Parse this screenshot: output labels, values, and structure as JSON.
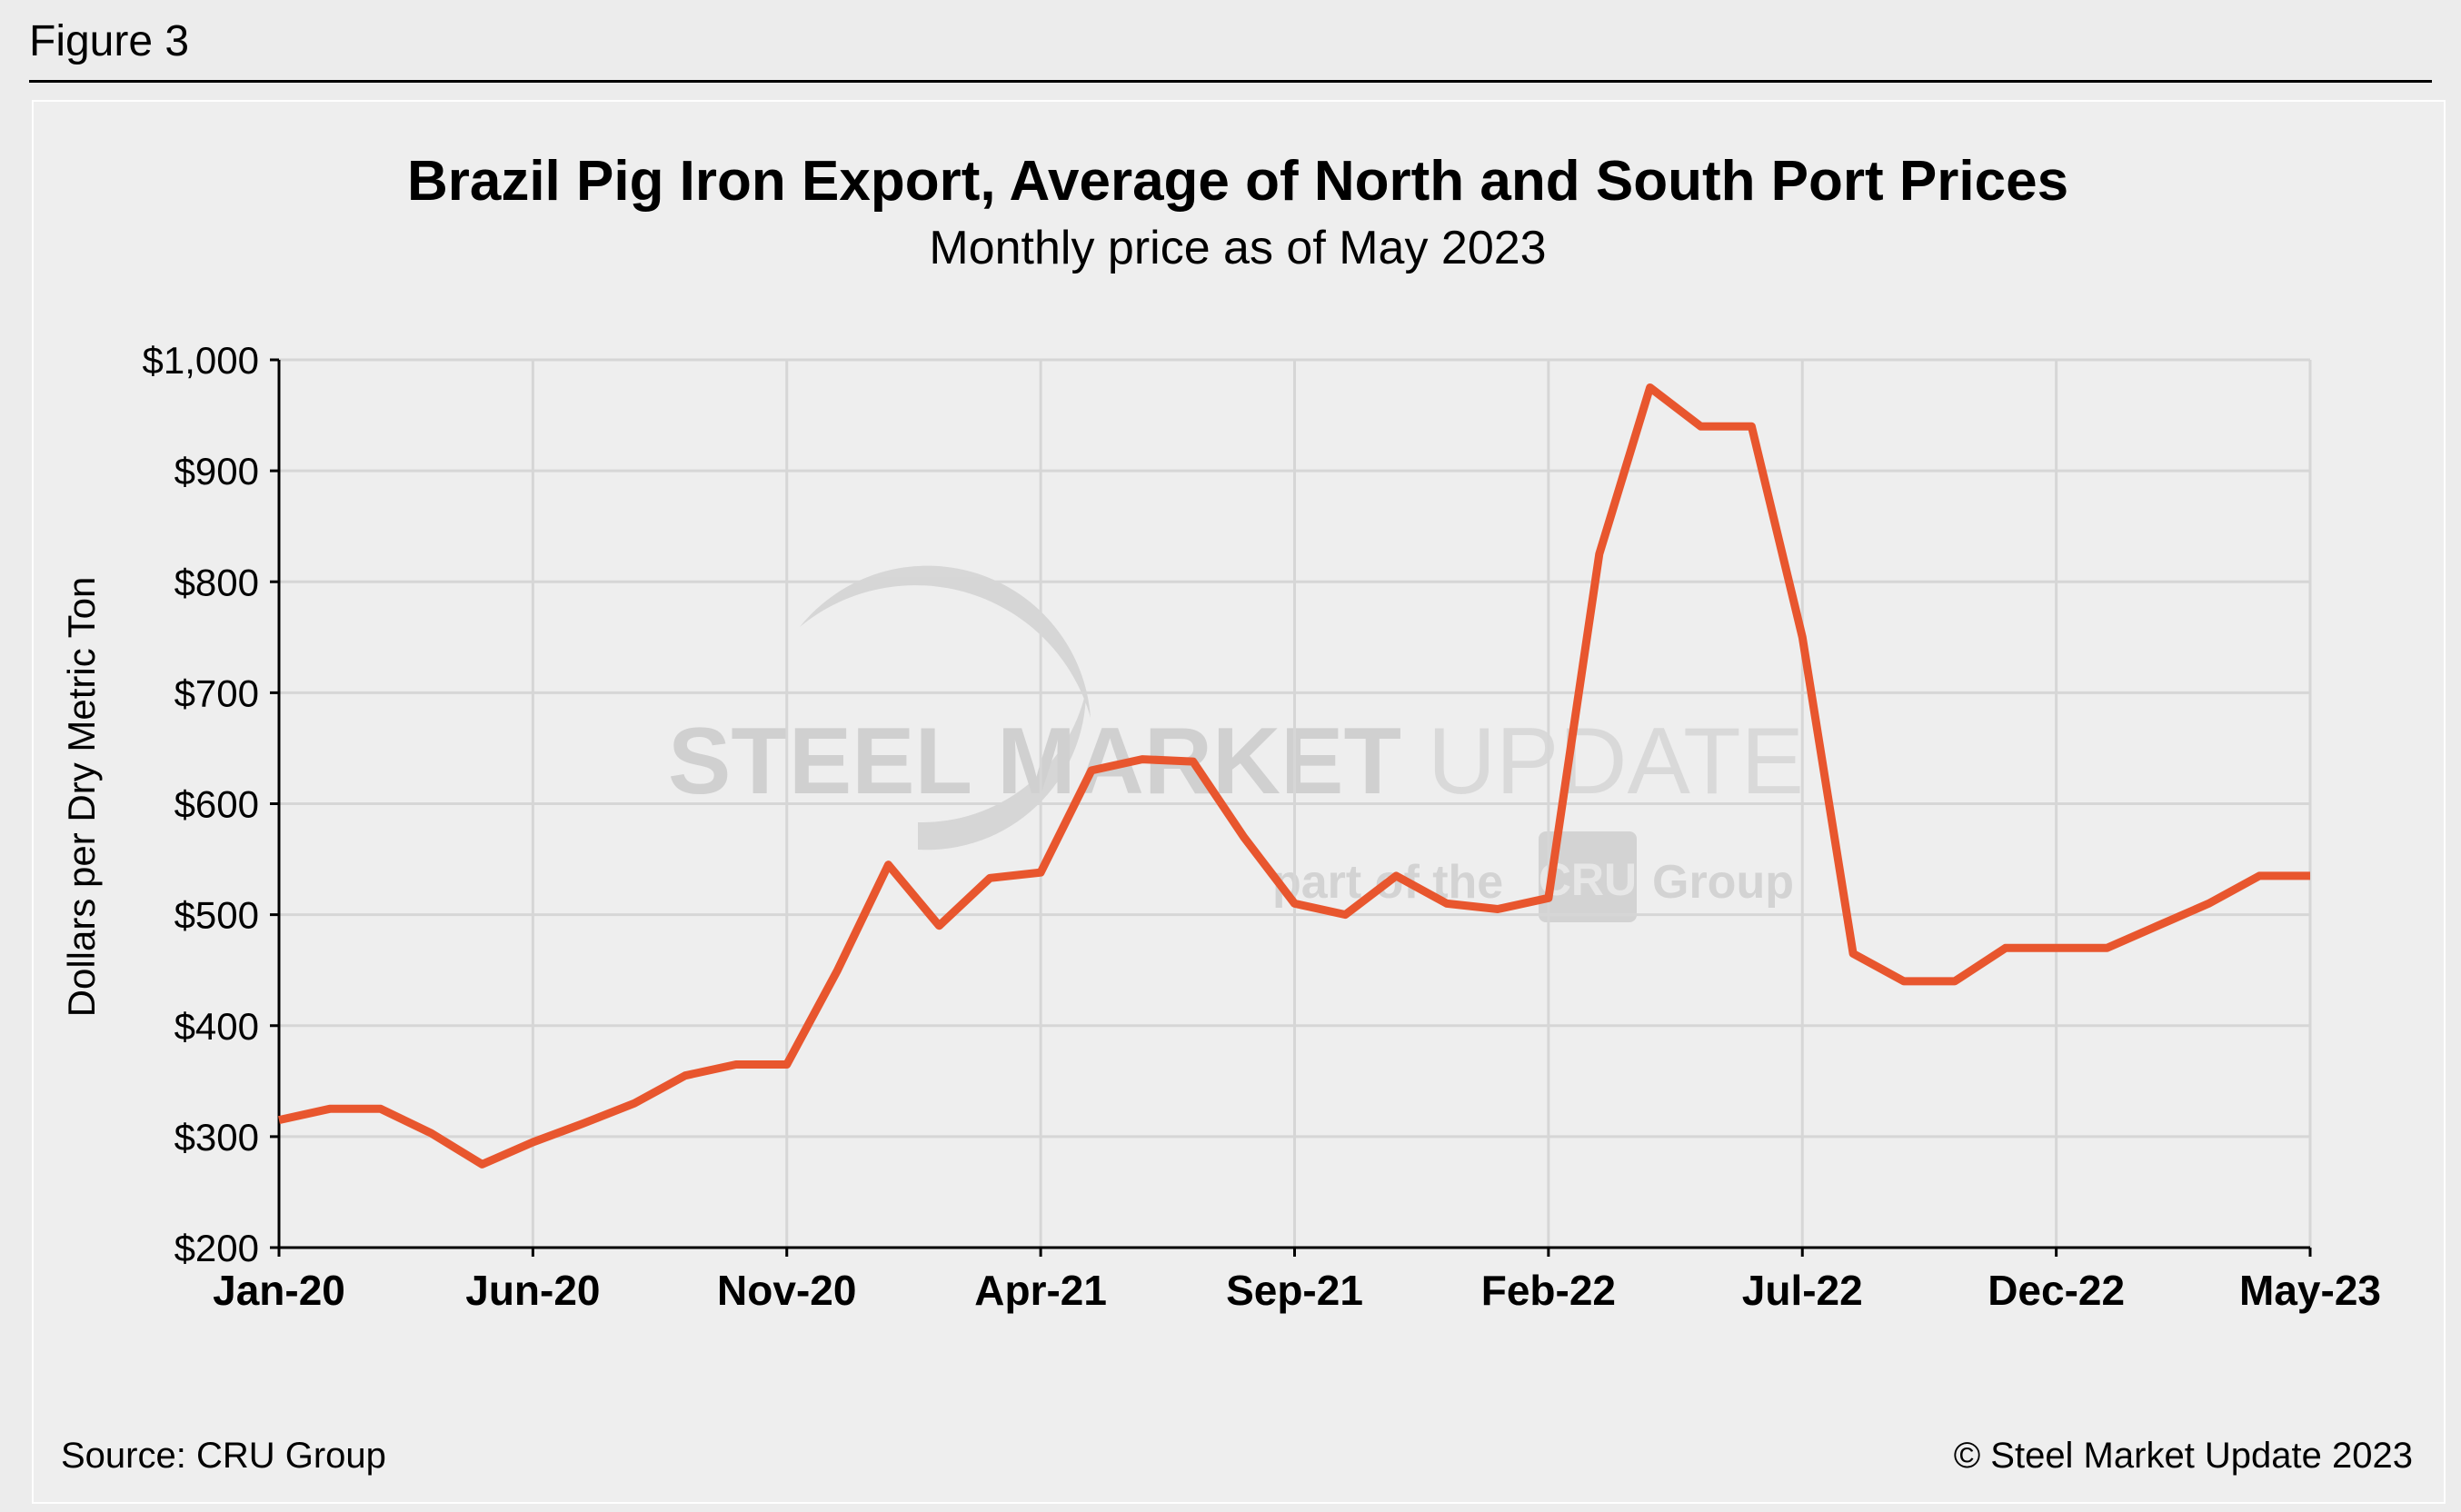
{
  "figure_label": "Figure 3",
  "footer": {
    "source": "Source: CRU Group",
    "copyright": "© Steel Market Update 2023"
  },
  "watermark": {
    "line1_bold": "STEEL MARKET",
    "line1_light": " UPDATE",
    "line2_pre": "part of the",
    "line2_badge": "CRU",
    "line2_post": "Group"
  },
  "colors": {
    "series": "#e8562e",
    "grid": "#d6d6d6",
    "axis": "#000000",
    "watermark": "#c8c8c8"
  },
  "chart_data": {
    "type": "line",
    "title": "Brazil Pig Iron Export, Average of North and South Port Prices",
    "subtitle": "Monthly price as of May 2023",
    "ylabel": "Dollars per Dry Metric Ton",
    "xlabel": "",
    "ylim": [
      200,
      1000
    ],
    "yticks": [
      200,
      300,
      400,
      500,
      600,
      700,
      800,
      900,
      1000
    ],
    "ytick_labels": [
      "$200",
      "$300",
      "$400",
      "$500",
      "$600",
      "$700",
      "$800",
      "$900",
      "$1,000"
    ],
    "xtick_labels": [
      "Jan-20",
      "Jun-20",
      "Nov-20",
      "Apr-21",
      "Sep-21",
      "Feb-22",
      "Jul-22",
      "Dec-22",
      "May-23"
    ],
    "grid": true,
    "legend": "none",
    "x": [
      "Jan-20",
      "Feb-20",
      "Mar-20",
      "Apr-20",
      "May-20",
      "Jun-20",
      "Jul-20",
      "Aug-20",
      "Sep-20",
      "Oct-20",
      "Nov-20",
      "Dec-20",
      "Jan-21",
      "Feb-21",
      "Mar-21",
      "Apr-21",
      "May-21",
      "Jun-21",
      "Jul-21",
      "Aug-21",
      "Sep-21",
      "Oct-21",
      "Nov-21",
      "Dec-21",
      "Jan-22",
      "Feb-22",
      "Mar-22",
      "Apr-22",
      "May-22",
      "Jun-22",
      "Jul-22",
      "Aug-22",
      "Sep-22",
      "Oct-22",
      "Nov-22",
      "Dec-22",
      "Jan-23",
      "Feb-23",
      "Mar-23",
      "Apr-23",
      "May-23"
    ],
    "series": [
      {
        "values": [
          315,
          325,
          325,
          303,
          275,
          295,
          312,
          330,
          355,
          365,
          365,
          450,
          545,
          490,
          533,
          538,
          630,
          640,
          638,
          570,
          510,
          500,
          535,
          510,
          505,
          515,
          825,
          975,
          940,
          940,
          750,
          465,
          440,
          440,
          470,
          470,
          470,
          490,
          510,
          535,
          535
        ]
      }
    ]
  }
}
